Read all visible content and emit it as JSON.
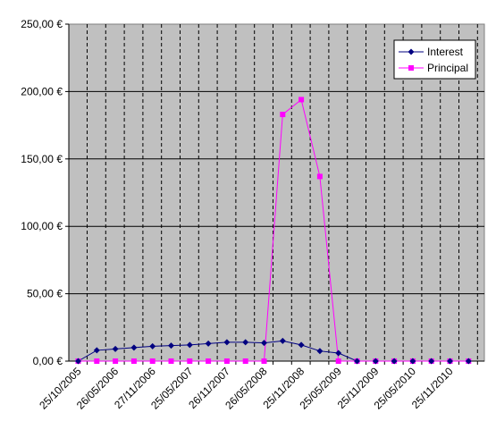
{
  "chart_data": {
    "type": "line",
    "title": "",
    "xlabel": "",
    "ylabel": "",
    "ylim": [
      0,
      250
    ],
    "y_ticks": [
      0,
      50,
      100,
      150,
      200,
      250
    ],
    "y_tick_labels": [
      "0,00 €",
      "50,00 €",
      "100,00 €",
      "150,00 €",
      "200,00 €",
      "250,00 €"
    ],
    "x_tick_labels": [
      "25/10/2005",
      "26/05/2006",
      "27/11/2006",
      "25/05/2007",
      "26/11/2007",
      "26/05/2008",
      "25/11/2008",
      "25/05/2009",
      "25/11/2009",
      "25/05/2010",
      "25/11/2010"
    ],
    "grid": true,
    "plot_background": "#c0c0c0",
    "legend_position": "top-right",
    "series": [
      {
        "name": "Interest",
        "color": "#000080",
        "marker": "diamond",
        "values": [
          0,
          8,
          9,
          10,
          11,
          11.5,
          12,
          13,
          14,
          14,
          13.5,
          15,
          12,
          7.5,
          6,
          0,
          0,
          0,
          0,
          0,
          0,
          0
        ]
      },
      {
        "name": "Principal",
        "color": "#ff00ff",
        "marker": "square",
        "values": [
          0,
          0,
          0,
          0,
          0,
          0,
          0,
          0,
          0,
          0,
          0,
          183,
          194,
          137,
          0,
          0,
          0,
          0,
          0,
          0,
          0,
          0
        ]
      }
    ]
  }
}
